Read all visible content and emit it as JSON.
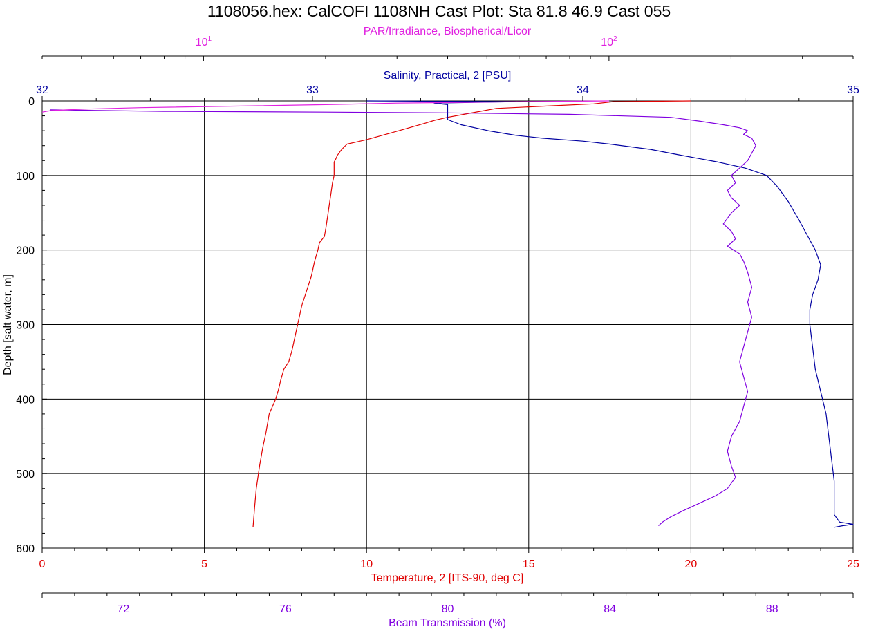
{
  "chart_data": {
    "type": "line",
    "title": "1108056.hex: CalCOFI 1108NH Cast Plot: Sta 81.8 46.9 Cast 055",
    "grid": true,
    "y_axis": {
      "label": "Depth [salt water, m]",
      "range": [
        0,
        600
      ],
      "inverted": true,
      "ticks": [
        0,
        100,
        200,
        300,
        400,
        500,
        600
      ],
      "tick_labels": [
        "0",
        "100",
        "200",
        "300",
        "400",
        "500",
        "600"
      ],
      "color": "#000000"
    },
    "axes": {
      "par": {
        "label": "PAR/Irradiance, Biospherical/Licor",
        "scale": "log",
        "range": [
          4,
          400
        ],
        "ticks": [
          10,
          100
        ],
        "tick_label_base": [
          "10",
          "10"
        ],
        "tick_label_exp": [
          "1",
          "2"
        ],
        "color": "#e020e0"
      },
      "salinity": {
        "label": "Salinity, Practical, 2 [PSU]",
        "range": [
          32,
          35
        ],
        "ticks": [
          32,
          33,
          34,
          35
        ],
        "tick_labels": [
          "32",
          "33",
          "34",
          "35"
        ],
        "color": "#0000a0"
      },
      "temperature": {
        "label": "Temperature, 2 [ITS-90, deg C]",
        "range": [
          0,
          25
        ],
        "ticks": [
          0,
          5,
          10,
          15,
          20,
          25
        ],
        "tick_labels": [
          "0",
          "5",
          "10",
          "15",
          "20",
          "25"
        ],
        "color": "#e00000"
      },
      "beam": {
        "label": "Beam Transmission (%)",
        "range": [
          70,
          90
        ],
        "ticks": [
          72,
          76,
          80,
          84,
          88
        ],
        "tick_labels": [
          "72",
          "76",
          "80",
          "84",
          "88"
        ],
        "color": "#8000e0"
      }
    },
    "series": [
      {
        "axis": "temperature",
        "color": "#e00000",
        "points": [
          [
            20.0,
            0
          ],
          [
            17.6,
            1
          ],
          [
            17.0,
            4
          ],
          [
            15.5,
            7
          ],
          [
            14.0,
            10
          ],
          [
            13.5,
            14
          ],
          [
            13.0,
            18
          ],
          [
            12.5,
            22
          ],
          [
            12.1,
            26
          ],
          [
            11.8,
            30
          ],
          [
            11.4,
            35
          ],
          [
            11.0,
            40
          ],
          [
            10.5,
            46
          ],
          [
            10.0,
            52
          ],
          [
            9.7,
            55
          ],
          [
            9.4,
            58
          ],
          [
            9.3,
            62
          ],
          [
            9.2,
            67
          ],
          [
            9.1,
            73
          ],
          [
            9.05,
            78
          ],
          [
            9.0,
            82
          ],
          [
            9.0,
            90
          ],
          [
            9.0,
            100
          ],
          [
            8.95,
            110
          ],
          [
            8.9,
            125
          ],
          [
            8.85,
            140
          ],
          [
            8.8,
            155
          ],
          [
            8.75,
            170
          ],
          [
            8.7,
            182
          ],
          [
            8.55,
            190
          ],
          [
            8.5,
            200
          ],
          [
            8.4,
            215
          ],
          [
            8.3,
            235
          ],
          [
            8.15,
            255
          ],
          [
            8.0,
            275
          ],
          [
            7.9,
            295
          ],
          [
            7.8,
            315
          ],
          [
            7.7,
            335
          ],
          [
            7.6,
            350
          ],
          [
            7.45,
            360
          ],
          [
            7.35,
            375
          ],
          [
            7.3,
            385
          ],
          [
            7.2,
            400
          ],
          [
            7.0,
            420
          ],
          [
            6.9,
            445
          ],
          [
            6.8,
            465
          ],
          [
            6.7,
            490
          ],
          [
            6.6,
            520
          ],
          [
            6.55,
            545
          ],
          [
            6.5,
            572
          ]
        ]
      },
      {
        "axis": "salinity",
        "color": "#0000a0",
        "points": [
          [
            33.2,
            0
          ],
          [
            33.75,
            1
          ],
          [
            33.45,
            3
          ],
          [
            33.5,
            5
          ],
          [
            33.5,
            8
          ],
          [
            33.5,
            12
          ],
          [
            33.5,
            18
          ],
          [
            33.5,
            25
          ],
          [
            33.55,
            32
          ],
          [
            33.65,
            40
          ],
          [
            33.75,
            46
          ],
          [
            33.85,
            50
          ],
          [
            34.0,
            54
          ],
          [
            34.1,
            58
          ],
          [
            34.25,
            65
          ],
          [
            34.35,
            72
          ],
          [
            34.5,
            82
          ],
          [
            34.6,
            90
          ],
          [
            34.68,
            100
          ],
          [
            34.72,
            115
          ],
          [
            34.76,
            135
          ],
          [
            34.8,
            160
          ],
          [
            34.83,
            180
          ],
          [
            34.86,
            200
          ],
          [
            34.88,
            220
          ],
          [
            34.87,
            240
          ],
          [
            34.85,
            260
          ],
          [
            34.84,
            280
          ],
          [
            34.84,
            300
          ],
          [
            34.85,
            330
          ],
          [
            34.86,
            360
          ],
          [
            34.88,
            390
          ],
          [
            34.9,
            420
          ],
          [
            34.91,
            450
          ],
          [
            34.92,
            480
          ],
          [
            34.93,
            510
          ],
          [
            34.93,
            540
          ],
          [
            34.93,
            555
          ],
          [
            34.95,
            565
          ],
          [
            35.0,
            568
          ],
          [
            34.96,
            570
          ],
          [
            34.93,
            572
          ]
        ]
      },
      {
        "axis": "beam",
        "color": "#8000e0",
        "points": [
          [
            70.2,
            12
          ],
          [
            73.0,
            14
          ],
          [
            77.0,
            15
          ],
          [
            80.0,
            16
          ],
          [
            83.0,
            18
          ],
          [
            85.5,
            22
          ],
          [
            86.2,
            27
          ],
          [
            86.8,
            32
          ],
          [
            87.2,
            36
          ],
          [
            87.4,
            40
          ],
          [
            87.3,
            45
          ],
          [
            87.5,
            50
          ],
          [
            87.6,
            60
          ],
          [
            87.5,
            70
          ],
          [
            87.4,
            80
          ],
          [
            87.2,
            90
          ],
          [
            87.0,
            100
          ],
          [
            87.1,
            110
          ],
          [
            86.9,
            120
          ],
          [
            87.0,
            130
          ],
          [
            87.2,
            140
          ],
          [
            87.0,
            150
          ],
          [
            86.8,
            165
          ],
          [
            87.0,
            175
          ],
          [
            87.1,
            185
          ],
          [
            86.9,
            195
          ],
          [
            87.2,
            205
          ],
          [
            87.3,
            215
          ],
          [
            87.4,
            230
          ],
          [
            87.5,
            250
          ],
          [
            87.4,
            270
          ],
          [
            87.5,
            290
          ],
          [
            87.4,
            310
          ],
          [
            87.3,
            330
          ],
          [
            87.2,
            350
          ],
          [
            87.3,
            370
          ],
          [
            87.4,
            390
          ],
          [
            87.3,
            410
          ],
          [
            87.2,
            430
          ],
          [
            87.0,
            450
          ],
          [
            86.9,
            470
          ],
          [
            87.0,
            490
          ],
          [
            87.1,
            505
          ],
          [
            86.9,
            520
          ],
          [
            86.6,
            530
          ],
          [
            86.2,
            540
          ],
          [
            85.8,
            550
          ],
          [
            85.5,
            558
          ],
          [
            85.3,
            565
          ],
          [
            85.2,
            570
          ]
        ]
      },
      {
        "axis": "par",
        "color": "#e020e0",
        "points": [
          [
            100,
            0
          ],
          [
            60,
            1
          ],
          [
            30,
            3
          ],
          [
            20,
            5
          ],
          [
            12,
            7
          ],
          [
            7,
            9
          ],
          [
            5,
            11
          ],
          [
            4.2,
            13
          ],
          [
            4.0,
            15
          ]
        ]
      }
    ]
  }
}
